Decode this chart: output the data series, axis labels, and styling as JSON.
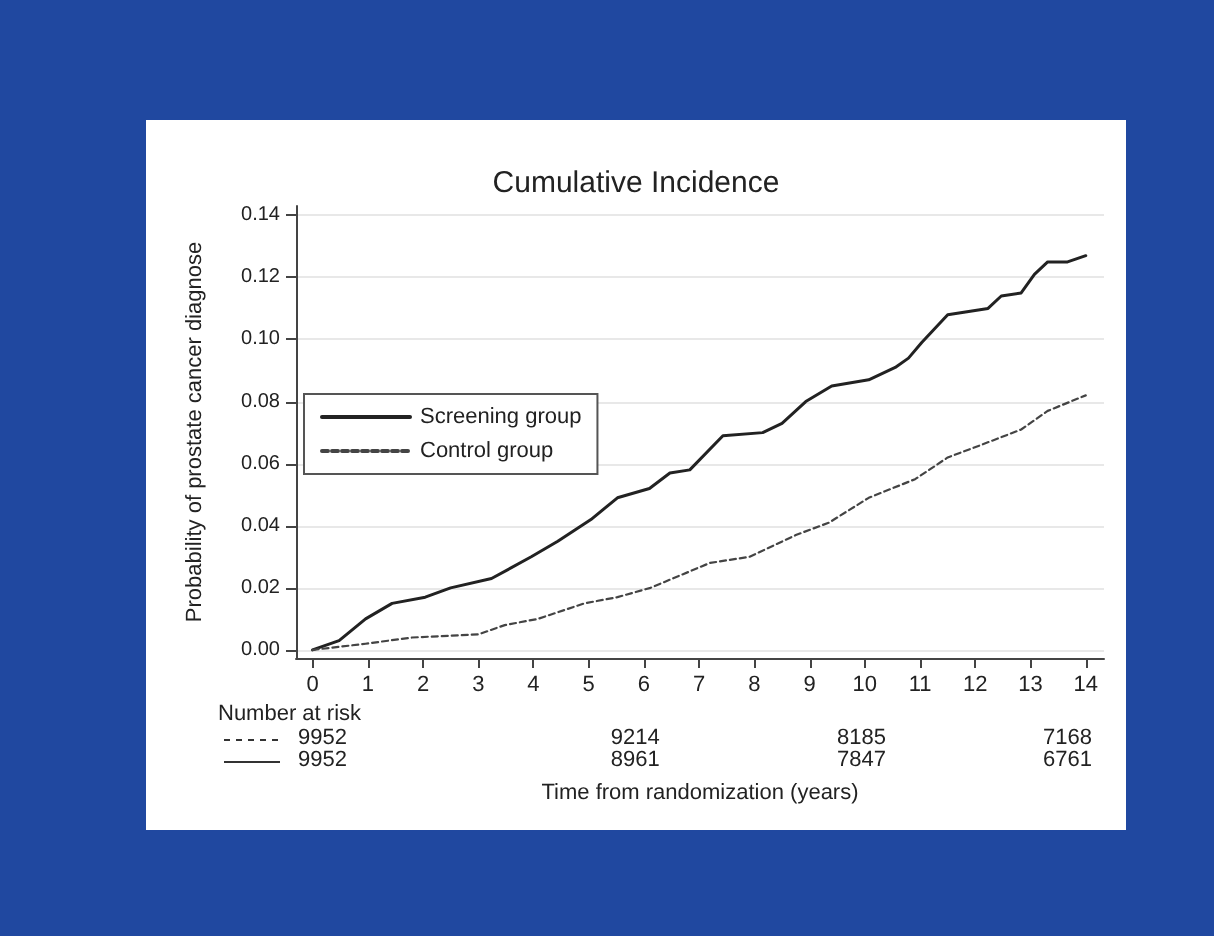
{
  "chart_data": {
    "type": "line",
    "title": "Cumulative Incidence",
    "xlabel": "Time from randomization (years)",
    "ylabel": "Probability of prostate cancer diagnose",
    "xlim": [
      -0.3,
      14.33
    ],
    "xticks": [
      0,
      1,
      2,
      3,
      4,
      5,
      6,
      7,
      8,
      9,
      10,
      11,
      12,
      13,
      14
    ],
    "ylim": [
      -0.0026,
      0.143
    ],
    "yticks": [
      {
        "value": 0,
        "label": "0.00"
      },
      {
        "value": 0.02,
        "label": "0.02"
      },
      {
        "value": 0.04,
        "label": "0.04"
      },
      {
        "value": 0.06,
        "label": "0.06"
      },
      {
        "value": 0.08,
        "label": "0.08"
      },
      {
        "value": 0.1,
        "label": "0.10"
      },
      {
        "value": 0.12,
        "label": "0.12"
      },
      {
        "value": 0.14,
        "label": "0.14"
      }
    ],
    "grid": "y",
    "legend": "left",
    "marker": "none",
    "series": [
      {
        "name": "Screening group",
        "color": "#222222",
        "line_style": "solid",
        "x": [
          0,
          0.48,
          0.96,
          1.44,
          2.04,
          2.5,
          3.24,
          3.96,
          4.44,
          5.04,
          5.52,
          6.1,
          6.47,
          6.83,
          7.43,
          8.15,
          8.5,
          8.93,
          9.4,
          10.07,
          10.55,
          10.79,
          11.03,
          11.5,
          12.23,
          12.47,
          12.83,
          13.07,
          13.31,
          13.67,
          14
        ],
        "values": [
          0,
          0.003,
          0.01,
          0.015,
          0.017,
          0.02,
          0.023,
          0.03,
          0.035,
          0.042,
          0.049,
          0.052,
          0.057,
          0.058,
          0.069,
          0.07,
          0.073,
          0.08,
          0.085,
          0.087,
          0.091,
          0.094,
          0.099,
          0.108,
          0.11,
          0.114,
          0.115,
          0.121,
          0.125,
          0.125,
          0.127
        ]
      },
      {
        "name": "Control group",
        "color": "#444444",
        "line_style": "dashed",
        "x": [
          0,
          0.96,
          1.8,
          3,
          3.48,
          4.08,
          4.92,
          5.52,
          6.12,
          7.19,
          7.91,
          8.75,
          9.35,
          10.07,
          10.91,
          11.5,
          12.1,
          12.83,
          13.31,
          14
        ],
        "values": [
          0,
          0.002,
          0.004,
          0.005,
          0.008,
          0.01,
          0.015,
          0.017,
          0.02,
          0.028,
          0.03,
          0.037,
          0.041,
          0.049,
          0.055,
          0.062,
          0.066,
          0.071,
          0.077,
          0.082
        ]
      }
    ],
    "annotations": [
      "Number at risk",
      "9952",
      "9214",
      "8185",
      "7168",
      "9952",
      "8961",
      "7847",
      "6761"
    ]
  }
}
